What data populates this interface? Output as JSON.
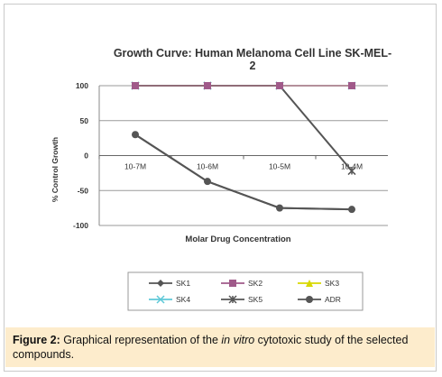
{
  "chart_data": {
    "type": "line",
    "title_line1": "Growth Curve: Human Melanoma Cell Line SK-MEL-",
    "title_line2": "2",
    "xlabel": "Molar Drug Concentration",
    "ylabel": "% Control Growth",
    "categories": [
      "10-7M",
      "10-6M",
      "10-5M",
      "10-4M"
    ],
    "yticks": [
      100,
      50,
      0,
      -50,
      -100
    ],
    "ylim": [
      -100,
      100
    ],
    "grid": "horizontal",
    "legend_placement": "bottom",
    "series": [
      {
        "name": "SK1",
        "color": "#555555",
        "marker": "diamond",
        "values": [
          30,
          -37,
          -75,
          -77
        ]
      },
      {
        "name": "SK2",
        "color": "#a05a8a",
        "marker": "square",
        "values": [
          100,
          100,
          100,
          100
        ]
      },
      {
        "name": "SK3",
        "color": "#d8d800",
        "marker": "triangle",
        "values": [
          100,
          100,
          100,
          100
        ]
      },
      {
        "name": "SK4",
        "color": "#5ec8d8",
        "marker": "x",
        "values": [
          100,
          100,
          100,
          100
        ]
      },
      {
        "name": "SK5",
        "color": "#555555",
        "marker": "star",
        "values": [
          100,
          100,
          100,
          -22
        ]
      },
      {
        "name": "ADR",
        "color": "#555555",
        "marker": "circle",
        "values": [
          30,
          -37,
          -75,
          -77
        ]
      }
    ]
  },
  "caption": {
    "label": "Figure 2:",
    "text_before": " Graphical representation of the ",
    "text_italic": "in vitro",
    "text_after": " cytotoxic study of the selected compounds."
  }
}
